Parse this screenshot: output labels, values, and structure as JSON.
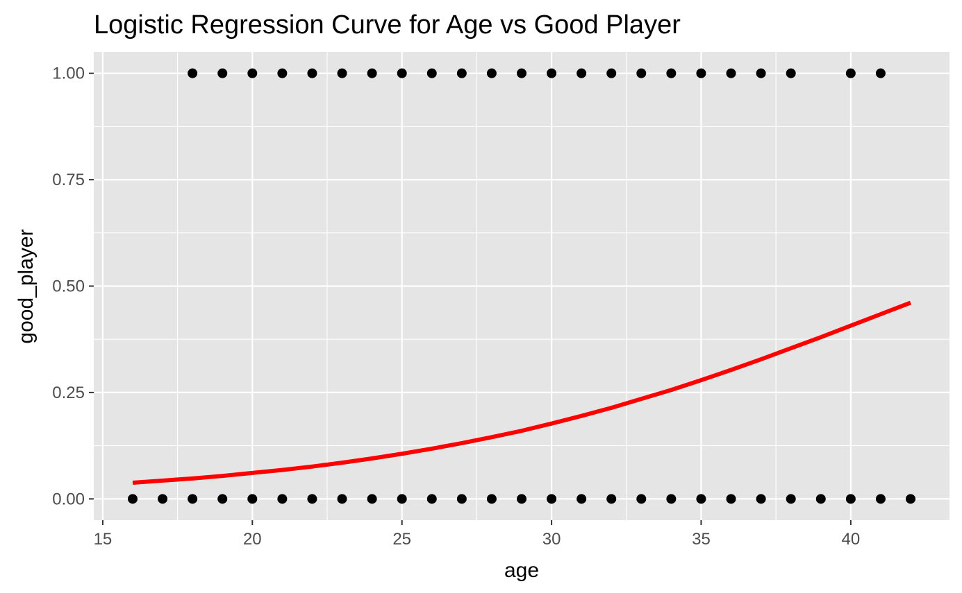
{
  "chart_data": {
    "type": "scatter",
    "title": "Logistic Regression Curve for Age vs Good Player",
    "xlabel": "age",
    "ylabel": "good_player",
    "xlim": [
      14.7,
      43.3
    ],
    "ylim": [
      -0.05,
      1.05
    ],
    "x_ticks": [
      15,
      20,
      25,
      30,
      35,
      40
    ],
    "x_tick_labels": [
      "15",
      "20",
      "25",
      "30",
      "35",
      "40"
    ],
    "y_ticks": [
      0,
      0.25,
      0.5,
      0.75,
      1
    ],
    "y_tick_labels": [
      "0.00",
      "0.25",
      "0.50",
      "0.75",
      "1.00"
    ],
    "grid": true,
    "legend": "none",
    "colors": {
      "panel": "#e5e5e5",
      "grid": "#ffffff",
      "points": "#000000",
      "curve": "#ff0000",
      "tick_label": "#4d4d4d",
      "tick_mark": "#333333"
    },
    "series": [
      {
        "type": "scatter",
        "points": [
          {
            "x": 18,
            "y": 1
          },
          {
            "x": 19,
            "y": 1
          },
          {
            "x": 20,
            "y": 1
          },
          {
            "x": 21,
            "y": 1
          },
          {
            "x": 22,
            "y": 1
          },
          {
            "x": 23,
            "y": 1
          },
          {
            "x": 24,
            "y": 1
          },
          {
            "x": 25,
            "y": 1
          },
          {
            "x": 26,
            "y": 1
          },
          {
            "x": 27,
            "y": 1
          },
          {
            "x": 28,
            "y": 1
          },
          {
            "x": 29,
            "y": 1
          },
          {
            "x": 30,
            "y": 1
          },
          {
            "x": 31,
            "y": 1
          },
          {
            "x": 32,
            "y": 1
          },
          {
            "x": 33,
            "y": 1
          },
          {
            "x": 34,
            "y": 1
          },
          {
            "x": 35,
            "y": 1
          },
          {
            "x": 36,
            "y": 1
          },
          {
            "x": 37,
            "y": 1
          },
          {
            "x": 38,
            "y": 1
          },
          {
            "x": 40,
            "y": 1
          },
          {
            "x": 41,
            "y": 1
          },
          {
            "x": 16,
            "y": 0
          },
          {
            "x": 17,
            "y": 0
          },
          {
            "x": 18,
            "y": 0
          },
          {
            "x": 19,
            "y": 0
          },
          {
            "x": 20,
            "y": 0
          },
          {
            "x": 21,
            "y": 0
          },
          {
            "x": 22,
            "y": 0
          },
          {
            "x": 23,
            "y": 0
          },
          {
            "x": 24,
            "y": 0
          },
          {
            "x": 25,
            "y": 0
          },
          {
            "x": 26,
            "y": 0
          },
          {
            "x": 27,
            "y": 0
          },
          {
            "x": 28,
            "y": 0
          },
          {
            "x": 29,
            "y": 0
          },
          {
            "x": 30,
            "y": 0
          },
          {
            "x": 31,
            "y": 0
          },
          {
            "x": 32,
            "y": 0
          },
          {
            "x": 33,
            "y": 0
          },
          {
            "x": 34,
            "y": 0
          },
          {
            "x": 35,
            "y": 0
          },
          {
            "x": 36,
            "y": 0
          },
          {
            "x": 37,
            "y": 0
          },
          {
            "x": 38,
            "y": 0
          },
          {
            "x": 39,
            "y": 0
          },
          {
            "x": 40,
            "y": 0
          },
          {
            "x": 41,
            "y": 0
          },
          {
            "x": 42,
            "y": 0
          }
        ]
      },
      {
        "type": "line",
        "points": [
          {
            "x": 16,
            "y": 0.038
          },
          {
            "x": 17,
            "y": 0.043
          },
          {
            "x": 18,
            "y": 0.048
          },
          {
            "x": 19,
            "y": 0.054
          },
          {
            "x": 20,
            "y": 0.061
          },
          {
            "x": 21,
            "y": 0.068
          },
          {
            "x": 22,
            "y": 0.076
          },
          {
            "x": 23,
            "y": 0.085
          },
          {
            "x": 24,
            "y": 0.095
          },
          {
            "x": 25,
            "y": 0.106
          },
          {
            "x": 26,
            "y": 0.118
          },
          {
            "x": 27,
            "y": 0.131
          },
          {
            "x": 28,
            "y": 0.145
          },
          {
            "x": 29,
            "y": 0.16
          },
          {
            "x": 30,
            "y": 0.177
          },
          {
            "x": 31,
            "y": 0.195
          },
          {
            "x": 32,
            "y": 0.214
          },
          {
            "x": 33,
            "y": 0.235
          },
          {
            "x": 34,
            "y": 0.256
          },
          {
            "x": 35,
            "y": 0.279
          },
          {
            "x": 36,
            "y": 0.303
          },
          {
            "x": 37,
            "y": 0.328
          },
          {
            "x": 38,
            "y": 0.354
          },
          {
            "x": 39,
            "y": 0.38
          },
          {
            "x": 40,
            "y": 0.407
          },
          {
            "x": 41,
            "y": 0.434
          },
          {
            "x": 42,
            "y": 0.461
          }
        ]
      }
    ]
  }
}
